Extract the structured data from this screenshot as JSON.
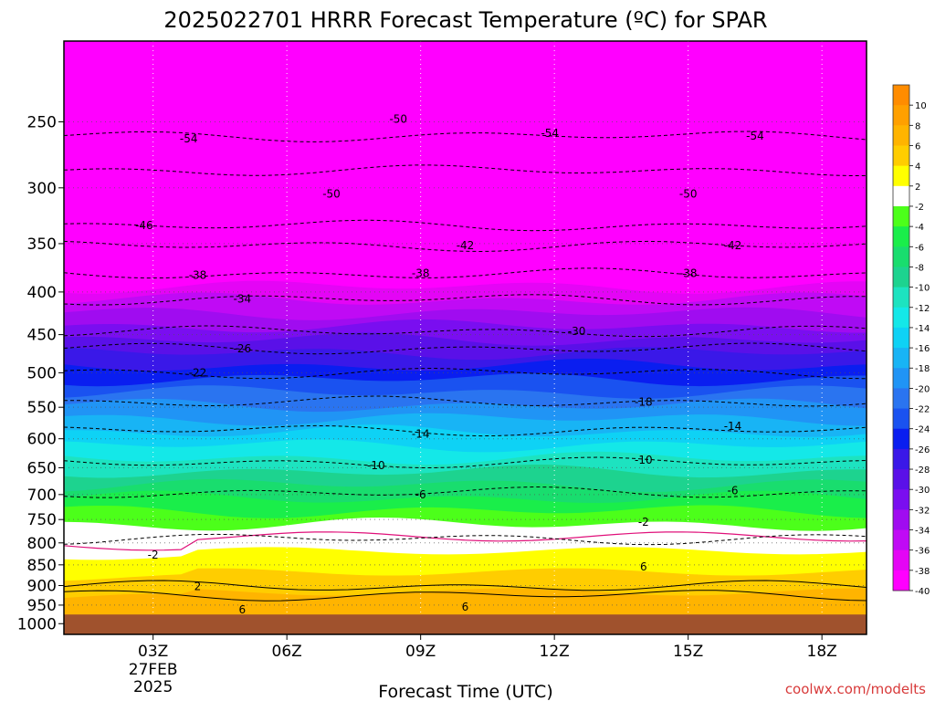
{
  "chart_data": {
    "type": "heatmap",
    "subtype": "time-height filled contour with isotherms",
    "title": "2025022701 HRRR Forecast Temperature (ºC) for SPAR",
    "xlabel": "Forecast Time (UTC)",
    "ylabel": "",
    "x_ticks": [
      "03Z",
      "06Z",
      "09Z",
      "12Z",
      "15Z",
      "18Z"
    ],
    "x_date_lines": [
      "27FEB",
      "2025"
    ],
    "x_range_hours": [
      1,
      19
    ],
    "y_ticks": [
      250,
      300,
      350,
      400,
      450,
      500,
      550,
      600,
      650,
      700,
      750,
      800,
      850,
      900,
      950,
      1000
    ],
    "y_range_hPa": [
      200,
      1030
    ],
    "y_scale": "log pressure",
    "grid": "dotted",
    "colorbar_ticks": [
      "10",
      "8",
      "6",
      "4",
      "2",
      "-2",
      "-4",
      "-6",
      "-8",
      "-10",
      "-12",
      "-14",
      "-16",
      "-18",
      "-20",
      "-22",
      "-24",
      "-26",
      "-28",
      "-30",
      "-32",
      "-34",
      "-36",
      "-38",
      "-40"
    ],
    "colorbar_colors": [
      "#ff8c00",
      "#ffa000",
      "#ffb400",
      "#ffcd00",
      "#ffff00",
      "#ffffff",
      "#4cff1a",
      "#1aee4a",
      "#19dd6e",
      "#1dd38f",
      "#1de3c0",
      "#14e8e8",
      "#0ed2f5",
      "#18b4f5",
      "#2094f5",
      "#2a74f0",
      "#1a52f0",
      "#0a1ef0",
      "#3a18e8",
      "#5a10e8",
      "#7a0ef0",
      "#a00cf0",
      "#c00af5",
      "#e405f5",
      "#ff00ff"
    ],
    "series": [
      {
        "name": "-54",
        "x": [
          3.8,
          11.9,
          16.5
        ],
        "y": [
          262,
          258,
          260
        ],
        "style": "dashed"
      },
      {
        "name": "-50",
        "x": [
          8.5,
          7.0,
          15.0
        ],
        "y": [
          248,
          305,
          305
        ],
        "style": "dashed"
      },
      {
        "name": "-46",
        "x": [
          2.8
        ],
        "y": [
          333
        ],
        "style": "dashed"
      },
      {
        "name": "-42",
        "x": [
          10.0,
          16.0
        ],
        "y": [
          352,
          352
        ],
        "style": "dashed"
      },
      {
        "name": "-38",
        "x": [
          4.0,
          9.0,
          15.0
        ],
        "y": [
          382,
          380,
          380
        ],
        "style": "dashed"
      },
      {
        "name": "-34",
        "x": [
          5.0
        ],
        "y": [
          408
        ],
        "style": "dashed"
      },
      {
        "name": "-30",
        "x": [
          12.5
        ],
        "y": [
          446
        ],
        "style": "dashed"
      },
      {
        "name": "-26",
        "x": [
          5.0
        ],
        "y": [
          468
        ],
        "style": "dashed"
      },
      {
        "name": "-22",
        "x": [
          4.0
        ],
        "y": [
          500
        ],
        "style": "dashed"
      },
      {
        "name": "-18",
        "x": [
          14.0
        ],
        "y": [
          542
        ],
        "style": "dashed"
      },
      {
        "name": "-14",
        "x": [
          9.0,
          16.0
        ],
        "y": [
          592,
          580
        ],
        "style": "dashed"
      },
      {
        "name": "-10",
        "x": [
          8.0,
          14.0
        ],
        "y": [
          646,
          636
        ],
        "style": "dashed"
      },
      {
        "name": "-6",
        "x": [
          9.0,
          16.0
        ],
        "y": [
          700,
          692
        ],
        "style": "dashed"
      },
      {
        "name": "-2",
        "x": [
          3.0,
          14.0
        ],
        "y": [
          827,
          755
        ],
        "style": "dashed"
      },
      {
        "name": "2",
        "x": [
          4.0
        ],
        "y": [
          902
        ],
        "style": "solid"
      },
      {
        "name": "6",
        "x": [
          5.0,
          10.0,
          14.0
        ],
        "y": [
          962,
          955,
          855
        ],
        "style": "solid"
      }
    ],
    "freezing_line": "magenta solid near 0 °C between 760 and 860 hPa",
    "surface_fill_below_hPa": 975
  },
  "credit": "coolwx.com/modelts"
}
